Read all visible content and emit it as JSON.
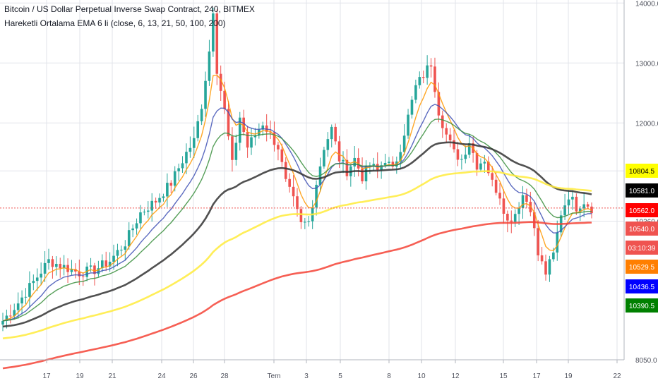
{
  "header": {
    "title": "Bitcoin / US Dollar Perpetual Inverse Swap Contract, 240, BITMEX",
    "indicator": "Hareketli Ortalama EMA 6 li (close, 6, 13, 21, 50, 100, 200)"
  },
  "chart_data": {
    "type": "candlestick",
    "ylim": [
      8050,
      14050
    ],
    "y_ticks": [
      "14000.0",
      "13000.0",
      "12000.0",
      "11200.0",
      "10360.0",
      "8050.0"
    ],
    "x_ticks": [
      "17",
      "19",
      "21",
      "24",
      "26",
      "28",
      "Tem",
      "3",
      "5",
      "8",
      "10",
      "12",
      "15",
      "17",
      "19",
      "22"
    ],
    "last_price": 10581.0,
    "price_labels": [
      {
        "text": "10804.5",
        "value": 10804.5,
        "color": "#ffff00",
        "text_color": "#000000"
      },
      {
        "text": "10581.0",
        "value": 10581.0,
        "color": "#000000",
        "text_color": "#ffffff"
      },
      {
        "text": "10562.0",
        "value": 10562.0,
        "color": "#ff0000",
        "text_color": "#ffffff"
      },
      {
        "text": "10540.0",
        "value": 10540.0,
        "color": "#ef5350",
        "text_color": "#ffffff"
      },
      {
        "text": "03:10:39",
        "value": 10534.0,
        "color": "#ef5350",
        "text_color": "#ffffff"
      },
      {
        "text": "10529.5",
        "value": 10529.5,
        "color": "#ff7f00",
        "text_color": "#ffffff"
      },
      {
        "text": "10436.5",
        "value": 10436.5,
        "color": "#0000ff",
        "text_color": "#ffffff"
      },
      {
        "text": "10390.5",
        "value": 10390.5,
        "color": "#008000",
        "text_color": "#ffffff"
      }
    ],
    "price_anchors": [
      [
        0,
        8700
      ],
      [
        4,
        9000
      ],
      [
        8,
        9350
      ],
      [
        12,
        9700
      ],
      [
        16,
        9600
      ],
      [
        20,
        9500
      ],
      [
        24,
        9550
      ],
      [
        28,
        9700
      ],
      [
        32,
        10000
      ],
      [
        36,
        10500
      ],
      [
        40,
        10700
      ],
      [
        44,
        11000
      ],
      [
        48,
        11500
      ],
      [
        50,
        11700
      ],
      [
        52,
        12300
      ],
      [
        54,
        13200
      ],
      [
        55,
        13900
      ],
      [
        56,
        12900
      ],
      [
        58,
        12200
      ],
      [
        60,
        11300
      ],
      [
        62,
        12100
      ],
      [
        64,
        11600
      ],
      [
        66,
        11800
      ],
      [
        68,
        12000
      ],
      [
        70,
        11800
      ],
      [
        72,
        11600
      ],
      [
        74,
        11000
      ],
      [
        76,
        10700
      ],
      [
        78,
        10300
      ],
      [
        80,
        10350
      ],
      [
        82,
        11000
      ],
      [
        84,
        11600
      ],
      [
        86,
        11900
      ],
      [
        88,
        11400
      ],
      [
        90,
        11200
      ],
      [
        92,
        11400
      ],
      [
        94,
        11100
      ],
      [
        96,
        11300
      ],
      [
        98,
        11200
      ],
      [
        100,
        11400
      ],
      [
        102,
        11200
      ],
      [
        104,
        11600
      ],
      [
        106,
        12100
      ],
      [
        108,
        12600
      ],
      [
        110,
        12800
      ],
      [
        112,
        13000
      ],
      [
        114,
        12200
      ],
      [
        116,
        11800
      ],
      [
        118,
        11500
      ],
      [
        120,
        11400
      ],
      [
        122,
        11700
      ],
      [
        124,
        11300
      ],
      [
        126,
        11400
      ],
      [
        128,
        11000
      ],
      [
        130,
        10800
      ],
      [
        132,
        10350
      ],
      [
        134,
        10500
      ],
      [
        136,
        10800
      ],
      [
        138,
        10600
      ],
      [
        140,
        9800
      ],
      [
        142,
        9500
      ],
      [
        144,
        9800
      ],
      [
        146,
        10500
      ],
      [
        148,
        10800
      ],
      [
        150,
        10600
      ],
      [
        152,
        10700
      ],
      [
        154,
        10580
      ]
    ],
    "emas": [
      {
        "period": 6,
        "color": "#ff9800"
      },
      {
        "period": 13,
        "color": "#3f51b5"
      },
      {
        "period": 21,
        "color": "#388e3c"
      },
      {
        "period": 50,
        "color": "#333333"
      },
      {
        "period": 100,
        "color": "#ffeb3b"
      },
      {
        "period": 200,
        "color": "#f44336"
      }
    ],
    "colors": {
      "up": "#26a69a",
      "down": "#ef5350",
      "grid": "#e1e3ea",
      "last_line": "#ef5350"
    }
  }
}
